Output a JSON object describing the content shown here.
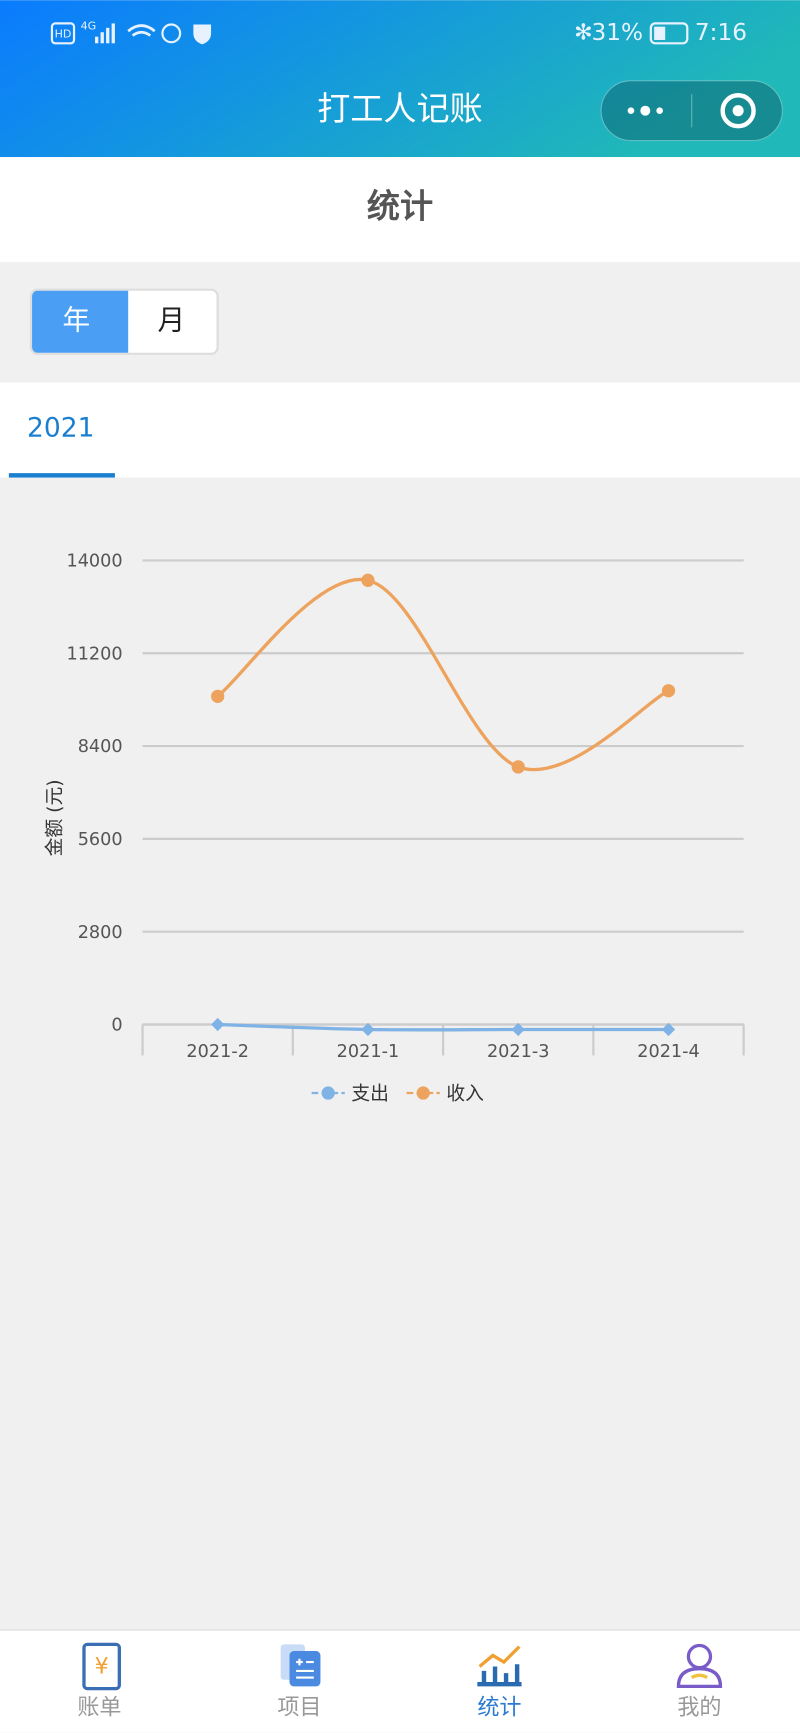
{
  "status_bar": {
    "left": [
      "HD",
      "4G"
    ],
    "battery": "31%",
    "time": "7:16"
  },
  "app_title": "打工人记账",
  "page_title": "统计",
  "toggle": [
    "年",
    "月"
  ],
  "tab": "2021",
  "chart_data": {
    "type": "line",
    "y_label": "金额 (元)",
    "categories": [
      "2021-2",
      "2021-1",
      "2021-3",
      "2021-4"
    ],
    "series": [
      {
        "name": "支出",
        "color": "#7fb2e5",
        "marker": "diamond",
        "values": [
          0,
          -150,
          -150,
          -150
        ]
      },
      {
        "name": "收入",
        "color": "#eda35e",
        "marker": "circle",
        "values": [
          9900,
          13400,
          7770,
          10070
        ]
      }
    ],
    "ylim": [
      0,
      14000
    ],
    "yticks": [
      0,
      2800,
      5600,
      8400,
      11200,
      14000
    ],
    "grid": true,
    "smooth": true,
    "legend": "bottom"
  },
  "tabbar": [
    "账单",
    "项目",
    "统计",
    "我的"
  ]
}
